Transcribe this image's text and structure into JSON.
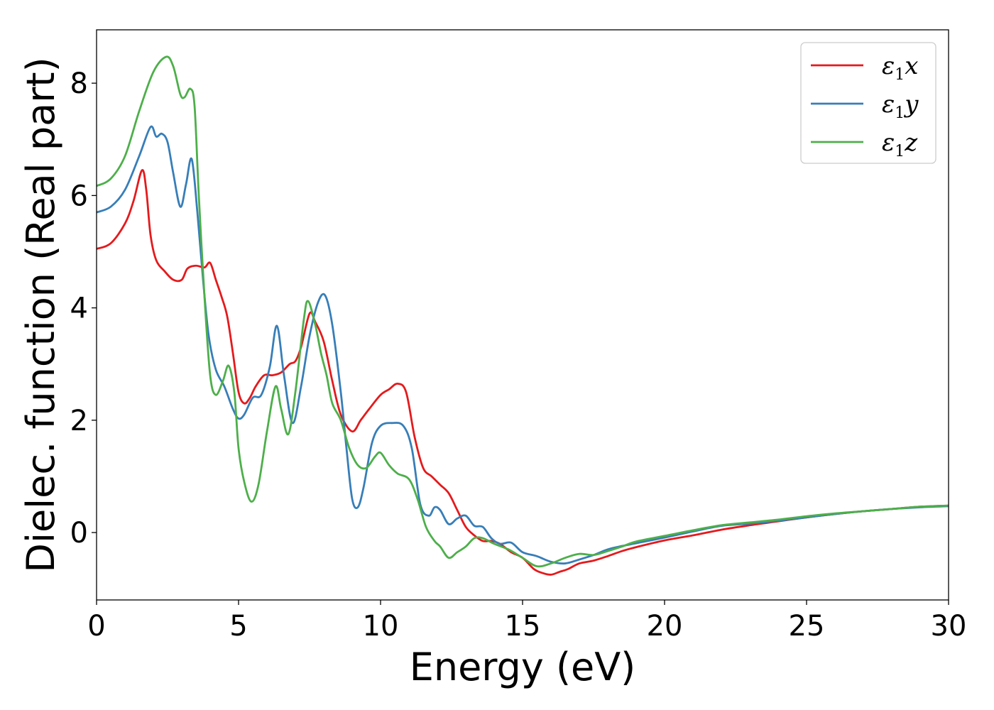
{
  "chart_data": {
    "type": "line",
    "title": "",
    "xlabel": "Energy (eV)",
    "ylabel": "Dielec. function (Real part)",
    "xlim": [
      0,
      30
    ],
    "ylim": [
      -1.2,
      8.95
    ],
    "xticks": [
      0,
      5,
      10,
      15,
      20,
      25,
      30
    ],
    "yticks": [
      0,
      2,
      4,
      6,
      8
    ],
    "grid": false,
    "legend_position": "top-right",
    "series": [
      {
        "name": "ε1x",
        "legend_base": "ε",
        "legend_sub": "1",
        "legend_tail": "x",
        "color": "#e41a1c",
        "x": [
          0,
          0.5,
          1.0,
          1.3,
          1.6,
          1.75,
          1.9,
          2.1,
          2.4,
          2.7,
          3.0,
          3.2,
          3.5,
          3.8,
          4.0,
          4.2,
          4.4,
          4.6,
          4.8,
          5.0,
          5.2,
          5.4,
          5.6,
          5.9,
          6.2,
          6.5,
          6.8,
          7.0,
          7.2,
          7.5,
          7.7,
          8.0,
          8.3,
          8.6,
          9.0,
          9.3,
          9.6,
          10.0,
          10.3,
          10.6,
          10.9,
          11.2,
          11.5,
          11.8,
          12.1,
          12.4,
          12.7,
          13.0,
          13.3,
          13.6,
          13.9,
          14.2,
          14.6,
          15.0,
          15.4,
          15.7,
          16.0,
          16.3,
          16.6,
          17.0,
          17.5,
          18.0,
          18.5,
          19.0,
          20.0,
          21.0,
          22.0,
          23.0,
          24.0,
          25.0,
          26.0,
          27.0,
          28.0,
          29.0,
          30.0
        ],
        "y": [
          5.05,
          5.15,
          5.5,
          5.9,
          6.45,
          6.1,
          5.3,
          4.85,
          4.65,
          4.5,
          4.5,
          4.7,
          4.75,
          4.72,
          4.8,
          4.5,
          4.2,
          3.85,
          3.2,
          2.5,
          2.3,
          2.4,
          2.6,
          2.8,
          2.8,
          2.85,
          3.0,
          3.05,
          3.3,
          3.9,
          3.75,
          3.4,
          2.7,
          2.1,
          1.8,
          2.0,
          2.2,
          2.45,
          2.55,
          2.65,
          2.5,
          1.7,
          1.15,
          1.0,
          0.85,
          0.7,
          0.4,
          0.1,
          -0.05,
          -0.15,
          -0.15,
          -0.2,
          -0.35,
          -0.45,
          -0.65,
          -0.72,
          -0.75,
          -0.7,
          -0.65,
          -0.55,
          -0.5,
          -0.42,
          -0.33,
          -0.26,
          -0.14,
          -0.05,
          0.05,
          0.13,
          0.2,
          0.27,
          0.33,
          0.38,
          0.42,
          0.46,
          0.48
        ]
      },
      {
        "name": "ε1y",
        "legend_base": "ε",
        "legend_sub": "1",
        "legend_tail": "y",
        "color": "#377eb8",
        "x": [
          0,
          0.5,
          1.0,
          1.5,
          1.9,
          2.1,
          2.3,
          2.5,
          2.7,
          2.95,
          3.15,
          3.35,
          3.55,
          3.75,
          3.95,
          4.2,
          4.5,
          4.8,
          5.0,
          5.2,
          5.5,
          5.8,
          6.1,
          6.35,
          6.6,
          6.9,
          7.2,
          7.5,
          7.8,
          8.05,
          8.3,
          8.6,
          8.8,
          9.0,
          9.2,
          9.4,
          9.7,
          10.0,
          10.4,
          10.8,
          11.1,
          11.4,
          11.7,
          11.9,
          12.1,
          12.4,
          12.7,
          13.0,
          13.3,
          13.6,
          13.9,
          14.2,
          14.6,
          15.0,
          15.5,
          16.0,
          16.5,
          17.0,
          17.5,
          18.0,
          18.5,
          19.0,
          20.0,
          21.0,
          22.0,
          23.0,
          24.0,
          25.0,
          26.0,
          27.0,
          28.0,
          29.0,
          30.0
        ],
        "y": [
          5.7,
          5.8,
          6.1,
          6.7,
          7.22,
          7.05,
          7.1,
          6.95,
          6.4,
          5.8,
          6.2,
          6.65,
          5.7,
          4.5,
          3.5,
          2.9,
          2.6,
          2.2,
          2.03,
          2.1,
          2.4,
          2.45,
          2.95,
          3.68,
          2.8,
          1.95,
          2.6,
          3.5,
          4.1,
          4.22,
          3.7,
          2.5,
          1.5,
          0.6,
          0.45,
          0.8,
          1.6,
          1.9,
          1.95,
          1.9,
          1.5,
          0.5,
          0.3,
          0.45,
          0.4,
          0.15,
          0.25,
          0.3,
          0.12,
          0.1,
          -0.1,
          -0.2,
          -0.18,
          -0.35,
          -0.42,
          -0.52,
          -0.55,
          -0.48,
          -0.4,
          -0.3,
          -0.24,
          -0.19,
          -0.09,
          0.02,
          0.12,
          0.16,
          0.21,
          0.27,
          0.33,
          0.38,
          0.42,
          0.45,
          0.47
        ]
      },
      {
        "name": "ε1z",
        "legend_base": "ε",
        "legend_sub": "1",
        "legend_tail": "z",
        "color": "#4daf4a",
        "x": [
          0,
          0.5,
          1.0,
          1.5,
          2.0,
          2.45,
          2.7,
          2.95,
          3.1,
          3.3,
          3.45,
          3.6,
          3.8,
          4.0,
          4.2,
          4.45,
          4.65,
          4.85,
          5.0,
          5.2,
          5.45,
          5.7,
          6.0,
          6.3,
          6.5,
          6.75,
          7.0,
          7.3,
          7.45,
          7.7,
          7.9,
          8.1,
          8.3,
          8.6,
          8.9,
          9.2,
          9.5,
          9.8,
          10.0,
          10.3,
          10.6,
          11.0,
          11.3,
          11.6,
          11.9,
          12.1,
          12.4,
          12.7,
          13.0,
          13.3,
          13.6,
          14.0,
          14.5,
          15.0,
          15.5,
          16.0,
          16.5,
          17.0,
          17.5,
          18.0,
          18.5,
          19.0,
          20.0,
          21.0,
          22.0,
          23.0,
          24.0,
          25.0,
          26.0,
          27.0,
          28.0,
          29.0,
          30.0
        ],
        "y": [
          6.17,
          6.3,
          6.7,
          7.5,
          8.2,
          8.47,
          8.3,
          7.8,
          7.75,
          7.9,
          7.6,
          6.0,
          4.2,
          2.8,
          2.45,
          2.7,
          2.97,
          2.5,
          1.5,
          0.9,
          0.55,
          0.85,
          1.8,
          2.6,
          2.2,
          1.75,
          2.5,
          3.8,
          4.12,
          3.7,
          3.2,
          2.8,
          2.3,
          2.0,
          1.5,
          1.2,
          1.15,
          1.35,
          1.42,
          1.2,
          1.05,
          0.95,
          0.6,
          0.1,
          -0.15,
          -0.25,
          -0.45,
          -0.35,
          -0.25,
          -0.1,
          -0.1,
          -0.2,
          -0.3,
          -0.45,
          -0.6,
          -0.55,
          -0.45,
          -0.38,
          -0.4,
          -0.33,
          -0.25,
          -0.16,
          -0.06,
          0.04,
          0.13,
          0.18,
          0.23,
          0.29,
          0.34,
          0.38,
          0.42,
          0.46,
          0.48
        ]
      }
    ]
  }
}
